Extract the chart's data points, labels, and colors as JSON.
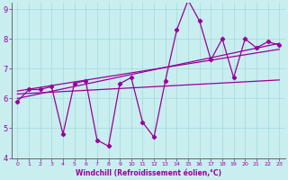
{
  "xlabel": "Windchill (Refroidissement éolien,°C)",
  "xlim": [
    -0.5,
    23.5
  ],
  "ylim": [
    4,
    9.2
  ],
  "yticks": [
    4,
    5,
    6,
    7,
    8,
    9
  ],
  "xticks": [
    0,
    1,
    2,
    3,
    4,
    5,
    6,
    7,
    8,
    9,
    10,
    11,
    12,
    13,
    14,
    15,
    16,
    17,
    18,
    19,
    20,
    21,
    22,
    23
  ],
  "bg_color": "#c8eef0",
  "line_color": "#990099",
  "grid_color": "#aadddd",
  "series1_x": [
    0,
    1,
    2,
    3,
    4,
    5,
    6,
    7,
    8,
    9,
    10,
    11,
    12,
    13,
    14,
    15,
    16,
    17,
    18,
    19,
    20,
    21,
    22,
    23
  ],
  "series1_y": [
    5.9,
    6.3,
    6.3,
    6.4,
    4.8,
    6.5,
    6.6,
    4.6,
    4.4,
    6.5,
    6.7,
    5.2,
    4.7,
    6.6,
    8.3,
    9.3,
    8.6,
    7.3,
    8.0,
    6.7,
    8.0,
    7.7,
    7.9,
    7.8
  ],
  "series2_x": [
    0,
    23
  ],
  "series2_y": [
    6.15,
    6.62
  ],
  "series3_x": [
    0,
    23
  ],
  "series3_y": [
    6.0,
    7.85
  ],
  "series4_x": [
    0,
    23
  ],
  "series4_y": [
    6.25,
    7.65
  ],
  "xlabel_fontsize": 5.5,
  "xtick_fontsize": 4.5,
  "ytick_fontsize": 6.0
}
